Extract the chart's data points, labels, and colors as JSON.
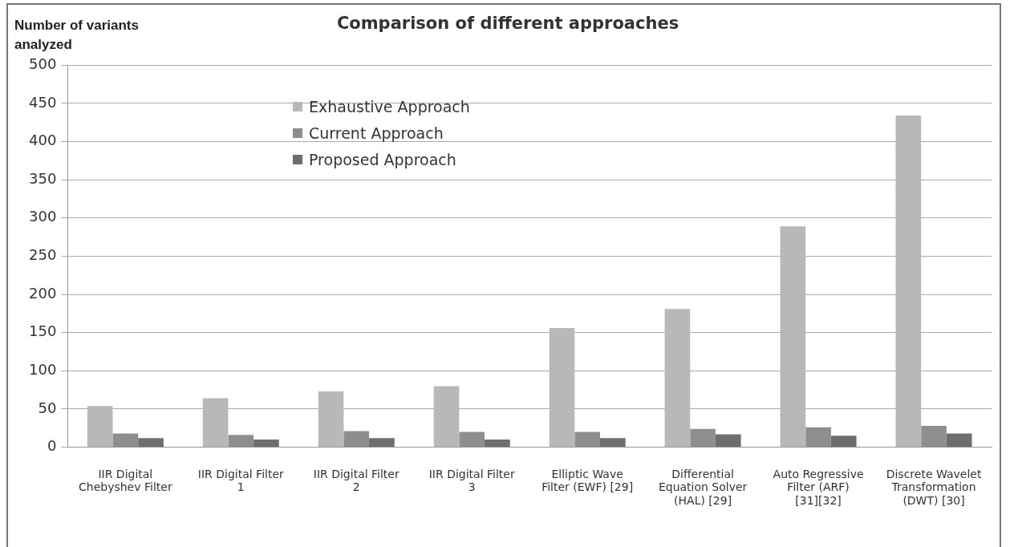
{
  "chart_data": {
    "type": "bar",
    "title": "Comparison of different approaches",
    "ylabel": "Number of variants analyzed",
    "categories": [
      "IIR Digital Chebyshev Filter",
      "IIR Digital Filter 1",
      "IIR Digital Filter 2",
      "IIR Digital Filter 3",
      "Elliptic Wave Filter (EWF) [29]",
      "Differential Equation Solver (HAL) [29]",
      "Auto Regressive Filter (ARF) [31][32]",
      "Discrete Wavelet Transformation (DWT) [30]"
    ],
    "series": [
      {
        "name": "Exhaustive Approach",
        "color": "#b8b8b8",
        "values": [
          54,
          64,
          73,
          80,
          156,
          181,
          289,
          434
        ]
      },
      {
        "name": "Current Approach",
        "color": "#8e8e8e",
        "values": [
          18,
          16,
          21,
          20,
          20,
          24,
          26,
          28
        ]
      },
      {
        "name": "Proposed Approach",
        "color": "#6e6e6e",
        "values": [
          12,
          10,
          12,
          10,
          12,
          17,
          15,
          18
        ]
      }
    ],
    "ylim": [
      0,
      500
    ],
    "yticks": [
      0,
      50,
      100,
      150,
      200,
      250,
      300,
      350,
      400,
      450,
      500
    ],
    "grid": "y",
    "legend": "top"
  }
}
